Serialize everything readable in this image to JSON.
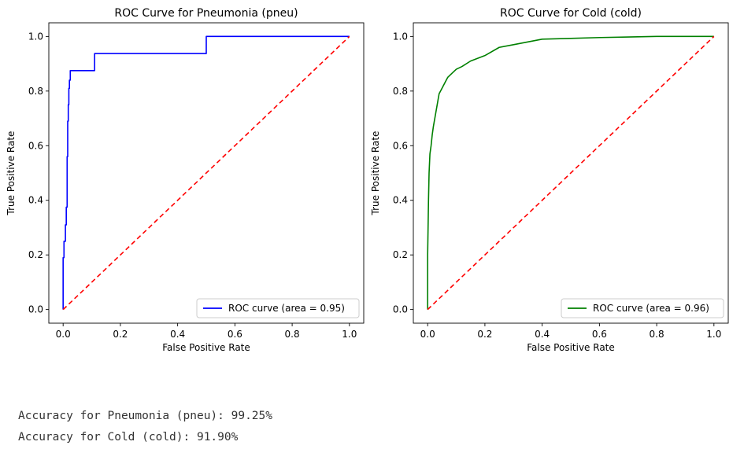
{
  "chart_data": [
    {
      "type": "line",
      "title": "ROC Curve for Pneumonia (pneu)",
      "xlabel": "False Positive Rate",
      "ylabel": "True Positive Rate",
      "xlim": [
        -0.05,
        1.05
      ],
      "ylim": [
        -0.05,
        1.05
      ],
      "xticks": [
        "0.0",
        "0.2",
        "0.4",
        "0.6",
        "0.8",
        "1.0"
      ],
      "yticks": [
        "0.0",
        "0.2",
        "0.4",
        "0.6",
        "0.8",
        "1.0"
      ],
      "legend_position": "lower-right",
      "series": [
        {
          "name": "ROC curve (area = 0.95)",
          "color": "#0000ff",
          "style": "solid",
          "x": [
            0,
            0,
            0.003,
            0.003,
            0.008,
            0.008,
            0.011,
            0.011,
            0.014,
            0.014,
            0.016,
            0.016,
            0.018,
            0.018,
            0.02,
            0.02,
            0.022,
            0.022,
            0.025,
            0.025,
            0.11,
            0.11,
            0.5,
            0.5,
            1.0
          ],
          "y": [
            0,
            0.19,
            0.19,
            0.25,
            0.25,
            0.31,
            0.31,
            0.375,
            0.375,
            0.56,
            0.56,
            0.69,
            0.69,
            0.75,
            0.75,
            0.81,
            0.81,
            0.84,
            0.84,
            0.875,
            0.875,
            0.9375,
            0.9375,
            1.0,
            1.0
          ]
        },
        {
          "color": "#ff0000",
          "style": "dashed",
          "x": [
            0,
            1
          ],
          "y": [
            0,
            1
          ]
        }
      ]
    },
    {
      "type": "line",
      "title": "ROC Curve for Cold (cold)",
      "xlabel": "False Positive Rate",
      "ylabel": "True Positive Rate",
      "xlim": [
        -0.05,
        1.05
      ],
      "ylim": [
        -0.05,
        1.05
      ],
      "xticks": [
        "0.0",
        "0.2",
        "0.4",
        "0.6",
        "0.8",
        "1.0"
      ],
      "yticks": [
        "0.0",
        "0.2",
        "0.4",
        "0.6",
        "0.8",
        "1.0"
      ],
      "legend_position": "lower-right",
      "series": [
        {
          "name": "ROC curve (area = 0.96)",
          "color": "#008000",
          "style": "solid",
          "x": [
            0,
            0,
            0.003,
            0.005,
            0.008,
            0.012,
            0.016,
            0.02,
            0.025,
            0.03,
            0.035,
            0.04,
            0.05,
            0.06,
            0.07,
            0.08,
            0.1,
            0.12,
            0.15,
            0.2,
            0.25,
            0.3,
            0.35,
            0.4,
            0.5,
            0.6,
            0.7,
            0.8,
            0.9,
            1.0
          ],
          "y": [
            0,
            0.2,
            0.4,
            0.5,
            0.57,
            0.6,
            0.64,
            0.67,
            0.7,
            0.73,
            0.76,
            0.79,
            0.81,
            0.83,
            0.85,
            0.86,
            0.88,
            0.89,
            0.91,
            0.93,
            0.96,
            0.97,
            0.98,
            0.99,
            0.993,
            0.996,
            0.998,
            1.0,
            1.0,
            1.0
          ]
        },
        {
          "color": "#ff0000",
          "style": "dashed",
          "x": [
            0,
            1
          ],
          "y": [
            0,
            1
          ]
        }
      ]
    }
  ],
  "output": {
    "line1": "Accuracy for Pneumonia (pneu): 99.25%",
    "line2": "Accuracy for Cold (cold): 91.90%"
  }
}
